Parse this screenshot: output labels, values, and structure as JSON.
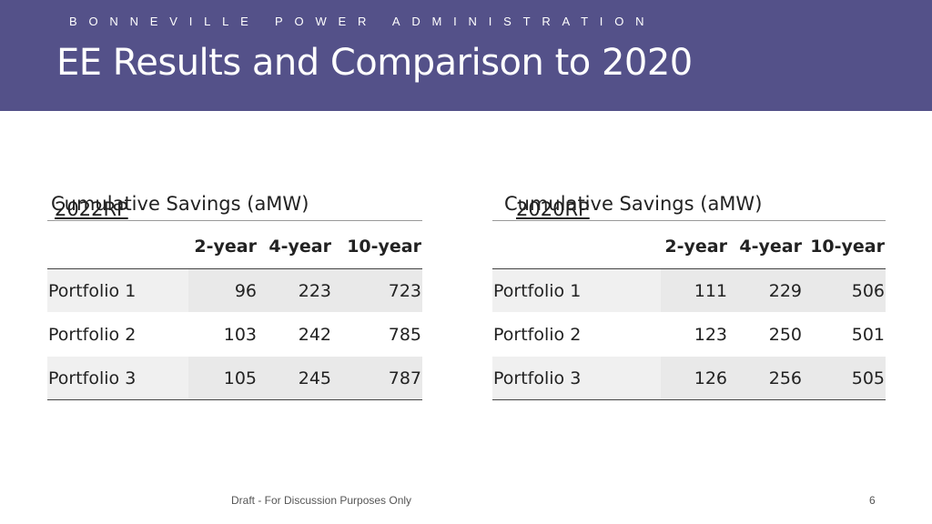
{
  "header": {
    "org": "BONNEVILLE POWER ADMINISTRATION",
    "title": "EE Results and Comparison to 2020"
  },
  "tables": [
    {
      "rp": "2022RP",
      "title_rest": "Cumulative Savings (aMW)",
      "columns": [
        "",
        "2-year",
        "4-year",
        "10-year"
      ],
      "rows": [
        {
          "label": "Portfolio 1",
          "values": [
            "96",
            "223",
            "723"
          ]
        },
        {
          "label": "Portfolio 2",
          "values": [
            "103",
            "242",
            "785"
          ]
        },
        {
          "label": "Portfolio 3",
          "values": [
            "105",
            "245",
            "787"
          ]
        }
      ]
    },
    {
      "rp": "2020RP",
      "title_rest": "Cumulative Savings (aMW)",
      "columns": [
        "",
        "2-year",
        "4-year",
        "10-year"
      ],
      "rows": [
        {
          "label": "Portfolio 1",
          "values": [
            "111",
            "229",
            "506"
          ]
        },
        {
          "label": "Portfolio 2",
          "values": [
            "123",
            "250",
            "501"
          ]
        },
        {
          "label": "Portfolio 3",
          "values": [
            "126",
            "256",
            "505"
          ]
        }
      ]
    }
  ],
  "footer": {
    "note": "Draft - For Discussion Purposes Only",
    "page_number": "6"
  },
  "colors": {
    "header_bg": "#545189",
    "row_shade": "#f0f0f0"
  }
}
